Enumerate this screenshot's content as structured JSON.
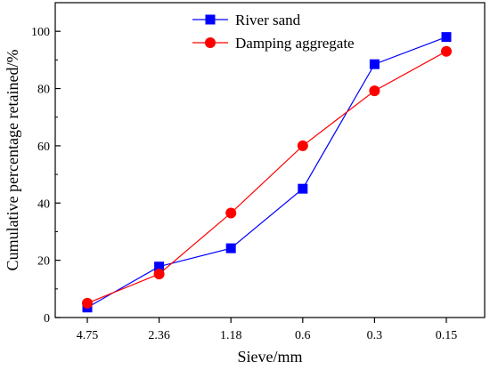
{
  "chart_data": {
    "type": "line",
    "xlabel": "Sieve/mm",
    "ylabel": "Cumulative percentage retained/%",
    "categories": [
      "4.75",
      "2.36",
      "1.18",
      "0.6",
      "0.3",
      "0.15"
    ],
    "ylim": [
      0,
      110
    ],
    "yticks": [
      0,
      20,
      40,
      60,
      80,
      100
    ],
    "grid": false,
    "legend_position": "top-left",
    "series": [
      {
        "name": "River sand",
        "values": [
          3.5,
          17.8,
          24.2,
          45.0,
          88.5,
          98.0
        ],
        "color": "#0000ff",
        "marker": "square"
      },
      {
        "name": "Damping aggregate",
        "values": [
          5.0,
          15.2,
          36.5,
          60.0,
          79.2,
          93.0
        ],
        "color": "#ff0000",
        "marker": "circle"
      }
    ]
  }
}
